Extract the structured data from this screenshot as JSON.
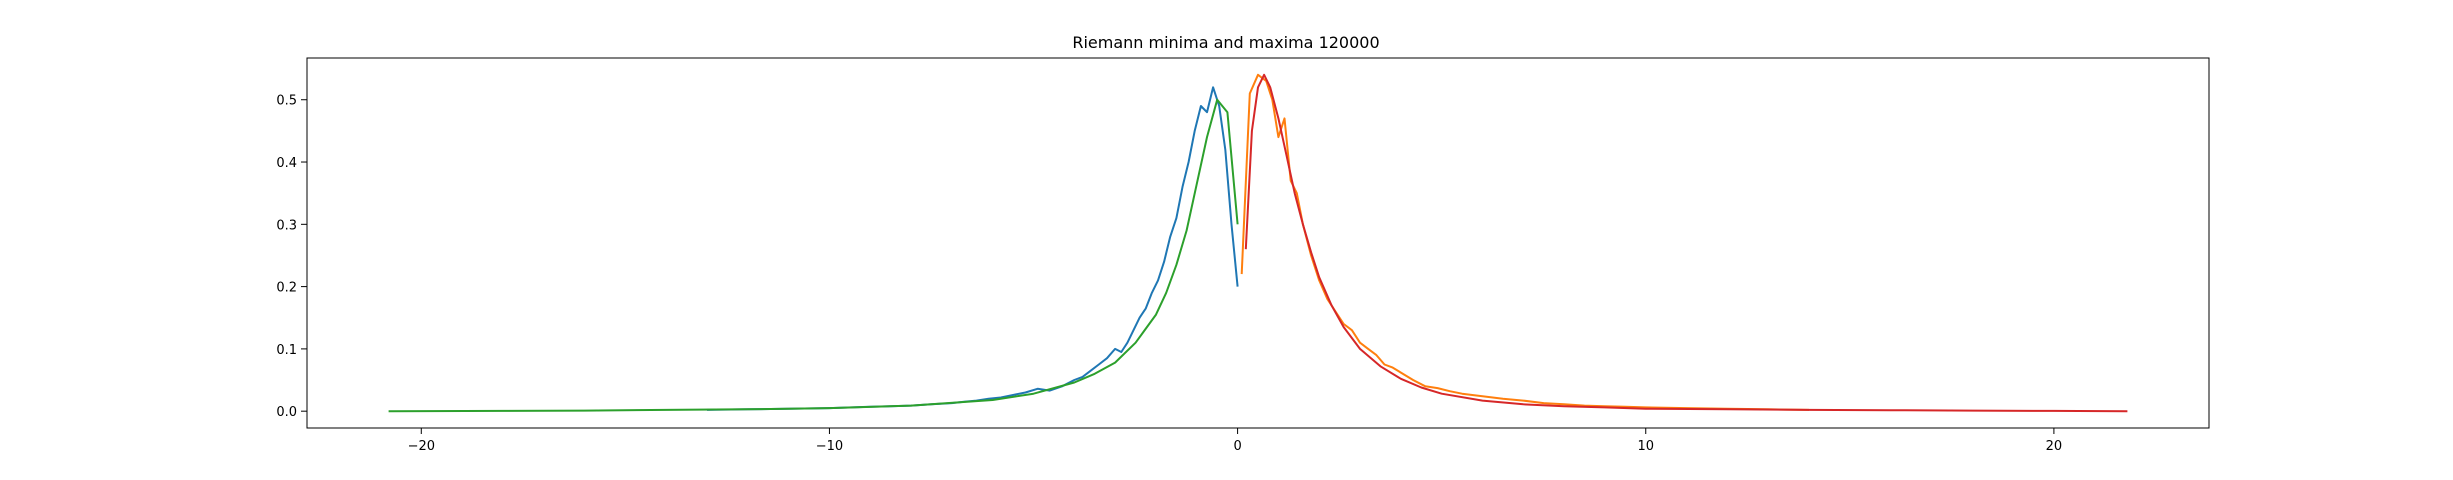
{
  "chart_data": {
    "type": "line",
    "title": "Riemann minima and maxima 120000",
    "xlabel": "",
    "ylabel": "",
    "xlim": [
      -22.8,
      23.8
    ],
    "ylim": [
      -0.027,
      0.567
    ],
    "xticks": [
      -20,
      -10,
      0,
      10,
      20
    ],
    "xtick_labels": [
      "−20",
      "−10",
      "0",
      "10",
      "20"
    ],
    "yticks": [
      0.0,
      0.1,
      0.2,
      0.3,
      0.4,
      0.5
    ],
    "ytick_labels": [
      "0.0",
      "0.1",
      "0.2",
      "0.3",
      "0.4",
      "0.5"
    ],
    "grid": false,
    "series": [
      {
        "color": "#1f77b4",
        "x": [
          -13.0,
          -12.0,
          -11.0,
          -10.0,
          -9.0,
          -8.5,
          -8.0,
          -7.5,
          -7.0,
          -6.7,
          -6.4,
          -6.1,
          -5.8,
          -5.5,
          -5.2,
          -4.9,
          -4.6,
          -4.3,
          -4.0,
          -3.8,
          -3.6,
          -3.4,
          -3.2,
          -3.0,
          -2.85,
          -2.7,
          -2.55,
          -2.4,
          -2.25,
          -2.1,
          -1.95,
          -1.8,
          -1.65,
          -1.5,
          -1.35,
          -1.2,
          -1.05,
          -0.9,
          -0.75,
          -0.6,
          -0.45,
          -0.3,
          -0.15,
          0.0
        ],
        "y": [
          0.002,
          0.003,
          0.004,
          0.005,
          0.007,
          0.008,
          0.009,
          0.011,
          0.013,
          0.015,
          0.017,
          0.02,
          0.022,
          0.026,
          0.03,
          0.036,
          0.033,
          0.04,
          0.05,
          0.055,
          0.065,
          0.075,
          0.085,
          0.1,
          0.095,
          0.11,
          0.13,
          0.15,
          0.165,
          0.19,
          0.21,
          0.24,
          0.28,
          0.31,
          0.36,
          0.4,
          0.45,
          0.49,
          0.48,
          0.52,
          0.49,
          0.42,
          0.3,
          0.2
        ]
      },
      {
        "color": "#ff7f0e",
        "x": [
          0.1,
          0.3,
          0.5,
          0.7,
          0.85,
          1.0,
          1.15,
          1.3,
          1.45,
          1.6,
          1.8,
          2.0,
          2.2,
          2.4,
          2.6,
          2.8,
          3.0,
          3.2,
          3.4,
          3.6,
          3.8,
          4.0,
          4.3,
          4.6,
          4.9,
          5.2,
          5.5,
          6.0,
          6.5,
          7.0,
          7.5,
          8.0,
          8.5,
          9.0,
          9.5,
          10.0,
          11.0,
          12.0,
          13.0,
          14.0
        ],
        "y": [
          0.22,
          0.51,
          0.54,
          0.53,
          0.5,
          0.44,
          0.47,
          0.37,
          0.35,
          0.3,
          0.25,
          0.21,
          0.18,
          0.16,
          0.14,
          0.13,
          0.11,
          0.1,
          0.09,
          0.075,
          0.07,
          0.062,
          0.05,
          0.04,
          0.037,
          0.032,
          0.028,
          0.024,
          0.02,
          0.017,
          0.013,
          0.011,
          0.009,
          0.008,
          0.007,
          0.006,
          0.005,
          0.004,
          0.003,
          0.002
        ]
      },
      {
        "color": "#2ca02c",
        "x": [
          -20.8,
          -18.0,
          -16.0,
          -14.0,
          -12.0,
          -10.0,
          -8.0,
          -6.0,
          -5.0,
          -4.0,
          -3.5,
          -3.0,
          -2.5,
          -2.0,
          -1.75,
          -1.5,
          -1.25,
          -1.0,
          -0.75,
          -0.5,
          -0.25,
          0.0
        ],
        "y": [
          0.0,
          0.0004,
          0.001,
          0.002,
          0.003,
          0.005,
          0.009,
          0.018,
          0.028,
          0.046,
          0.06,
          0.078,
          0.11,
          0.155,
          0.19,
          0.235,
          0.29,
          0.365,
          0.44,
          0.5,
          0.48,
          0.3
        ]
      },
      {
        "color": "#d62728",
        "x": [
          0.2,
          0.35,
          0.5,
          0.65,
          0.8,
          1.0,
          1.2,
          1.4,
          1.6,
          1.8,
          2.0,
          2.3,
          2.6,
          3.0,
          3.5,
          4.0,
          4.5,
          5.0,
          6.0,
          7.0,
          8.0,
          9.0,
          10.0,
          12.0,
          14.0,
          16.0,
          18.0,
          20.0,
          21.8
        ],
        "y": [
          0.26,
          0.45,
          0.52,
          0.54,
          0.52,
          0.47,
          0.41,
          0.35,
          0.3,
          0.255,
          0.215,
          0.17,
          0.135,
          0.1,
          0.072,
          0.052,
          0.038,
          0.028,
          0.017,
          0.011,
          0.008,
          0.006,
          0.004,
          0.003,
          0.002,
          0.0015,
          0.001,
          0.0005,
          0.0
        ]
      }
    ]
  }
}
